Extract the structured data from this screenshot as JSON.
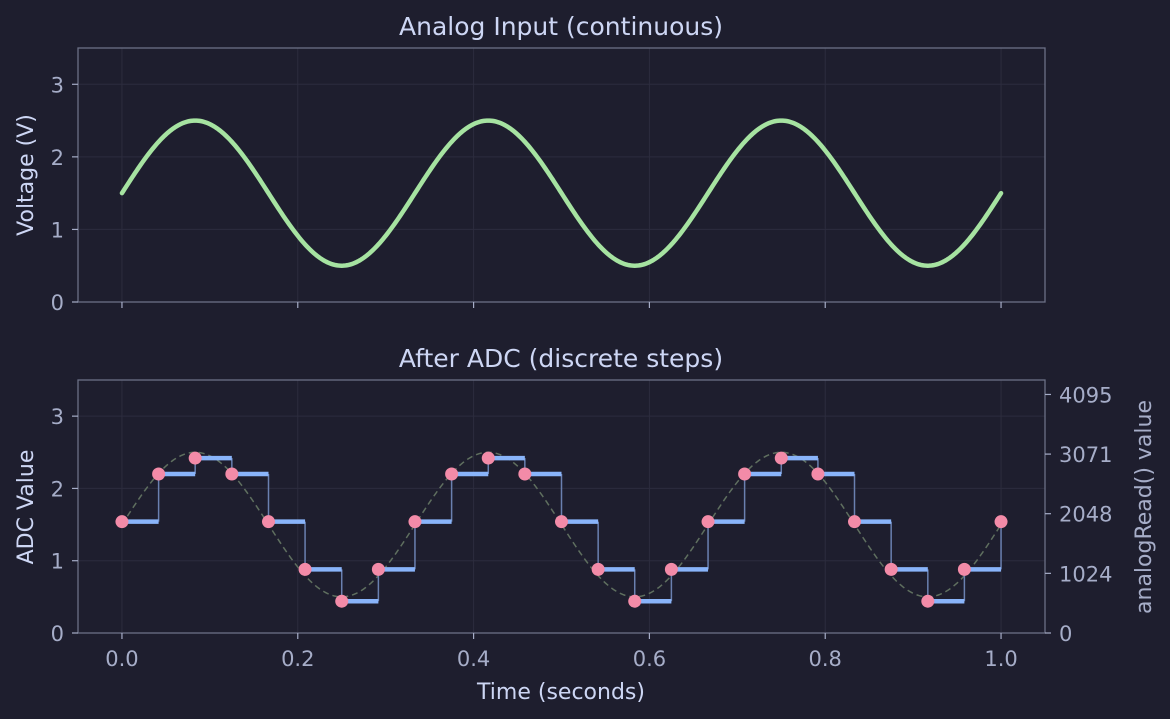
{
  "colors": {
    "background": "#1e1e2e",
    "analog": "#a6e3a1",
    "steps": "#89b4fa",
    "samples": "#f38ba8",
    "reference": "#5f6f5f",
    "text": "#cdd6f4",
    "ticks": "#a6adc8",
    "spine": "#6c7086"
  },
  "chart_data": [
    {
      "type": "line",
      "title": "Analog Input (continuous)",
      "xlabel": "",
      "ylabel": "Voltage (V)",
      "xlim": [
        -0.05,
        1.05
      ],
      "ylim": [
        0,
        3.5
      ],
      "xticks": [
        0.0,
        0.2,
        0.4,
        0.6,
        0.8,
        1.0
      ],
      "yticks": [
        0,
        1,
        2,
        3
      ],
      "ytick_labels": [
        "0",
        "1",
        "2",
        "3"
      ],
      "grid": true,
      "series": [
        {
          "function": "1.5 + 1.0*sin(2*pi*3*t)",
          "t_range": [
            0,
            1
          ]
        }
      ]
    },
    {
      "type": "step",
      "title": "After ADC (discrete steps)",
      "xlabel": "Time (seconds)",
      "ylabel": "ADC Value",
      "right_ylabel": "analogRead() value",
      "xlim": [
        -0.05,
        1.05
      ],
      "ylim": [
        0,
        3.5
      ],
      "xticks": [
        0.0,
        0.2,
        0.4,
        0.6,
        0.8,
        1.0
      ],
      "xtick_labels": [
        "0.0",
        "0.2",
        "0.4",
        "0.6",
        "0.8",
        "1.0"
      ],
      "yticks": [
        0,
        1,
        2,
        3
      ],
      "ytick_labels": [
        "0",
        "1",
        "2",
        "3"
      ],
      "right_yticks": [
        0,
        1024,
        2048,
        3071,
        4095
      ],
      "right_ytick_labels": [
        "0",
        "1024",
        "2048",
        "3071",
        "4095"
      ],
      "right_ylim": [
        0,
        4095
      ],
      "right_full_scale_voltage": 3.3,
      "grid": true,
      "sample_times": [
        0,
        0.0417,
        0.0833,
        0.125,
        0.1667,
        0.2083,
        0.25,
        0.2917,
        0.3333,
        0.375,
        0.4167,
        0.4583,
        0.5,
        0.5417,
        0.5833,
        0.625,
        0.6667,
        0.7083,
        0.75,
        0.7917,
        0.8333,
        0.875,
        0.9167,
        0.9583,
        1.0
      ],
      "sample_values": [
        1.54,
        2.2,
        2.42,
        2.2,
        1.54,
        0.88,
        0.44,
        0.88,
        1.54,
        2.2,
        2.42,
        2.2,
        1.54,
        0.88,
        0.44,
        0.88,
        1.54,
        2.2,
        2.42,
        2.2,
        1.54,
        0.88,
        0.44,
        0.88,
        1.54
      ],
      "reference_curve": "1.5 + 1.0*sin(2*pi*3*t)"
    }
  ]
}
